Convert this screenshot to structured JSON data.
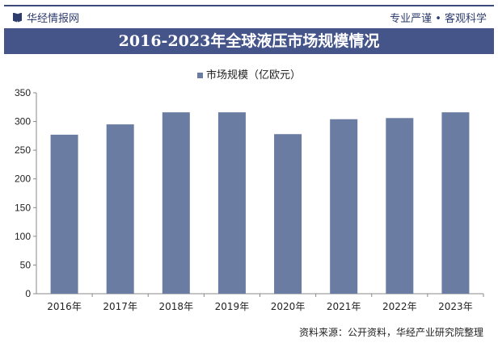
{
  "header": {
    "brand": "华经情报网",
    "slogan": "专业严谨 • 客观科学"
  },
  "footer": {
    "source": "资料来源：公开资料，华经产业研究院整理"
  },
  "colors": {
    "bar": "#6b7ca3",
    "title_bg": "#45558a"
  },
  "chart_data": {
    "type": "bar",
    "title": "2016-2023年全球液压市场规模情况",
    "categories": [
      "2016年",
      "2017年",
      "2018年",
      "2019年",
      "2020年",
      "2021年",
      "2022年",
      "2023年"
    ],
    "series": [
      {
        "name": "市场规模（亿欧元）",
        "values": [
          277,
          295,
          316,
          316,
          278,
          304,
          306,
          316
        ]
      }
    ],
    "yticks": [
      0,
      50,
      100,
      150,
      200,
      250,
      300,
      350
    ],
    "ylim": [
      0,
      350
    ],
    "grid": false,
    "legend": "top-center"
  }
}
